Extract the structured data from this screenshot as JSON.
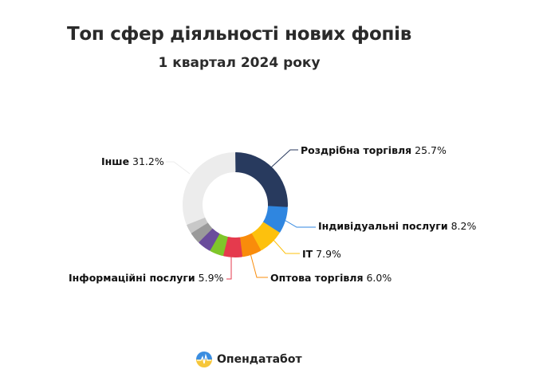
{
  "header": {
    "title": "Топ сфер діяльності нових фопів",
    "subtitle": "1 квартал 2024 року"
  },
  "brand": {
    "name": "Опендатабот",
    "icon": "opendatabot-logo-icon"
  },
  "chart_data": {
    "type": "pie",
    "donut": true,
    "title": "Топ сфер діяльності нових фопів",
    "subtitle": "1 квартал 2024 року",
    "unit": "%",
    "slices": [
      {
        "label": "Роздрібна торгівля",
        "value": 25.7,
        "color": "#283a5e",
        "labeled": true
      },
      {
        "label": "Індивідуальні послуги",
        "value": 8.2,
        "color": "#2f86e0",
        "labeled": true
      },
      {
        "label": "IT",
        "value": 7.9,
        "color": "#fdc10d",
        "labeled": true
      },
      {
        "label": "Оптова торгівля",
        "value": 6.0,
        "color": "#f98c0b",
        "labeled": true
      },
      {
        "label": "Інформаційні послуги",
        "value": 5.9,
        "color": "#e53a4d",
        "labeled": true
      },
      {
        "label": "",
        "value": 4.3,
        "color": "#7fc62a",
        "labeled": false
      },
      {
        "label": "",
        "value": 4.3,
        "color": "#6a4c9c",
        "labeled": false
      },
      {
        "label": "",
        "value": 3.6,
        "color": "#9a9a9a",
        "labeled": false
      },
      {
        "label": "",
        "value": 2.9,
        "color": "#c8c8c8",
        "labeled": false
      },
      {
        "label": "Інше",
        "value": 31.2,
        "color": "#ececec",
        "labeled": true
      }
    ],
    "legend": "callout labels"
  },
  "labels": [
    {
      "name": "Роздрібна торгівля",
      "value": "25.7%"
    },
    {
      "name": "Індивідуальні послуги",
      "value": "8.2%"
    },
    {
      "name": "IT",
      "value": "7.9%"
    },
    {
      "name": "Оптова торгівля",
      "value": "6.0%"
    },
    {
      "name": "Інформаційні послуги",
      "value": "5.9%"
    },
    {
      "name": "Інше",
      "value": "31.2%"
    }
  ]
}
